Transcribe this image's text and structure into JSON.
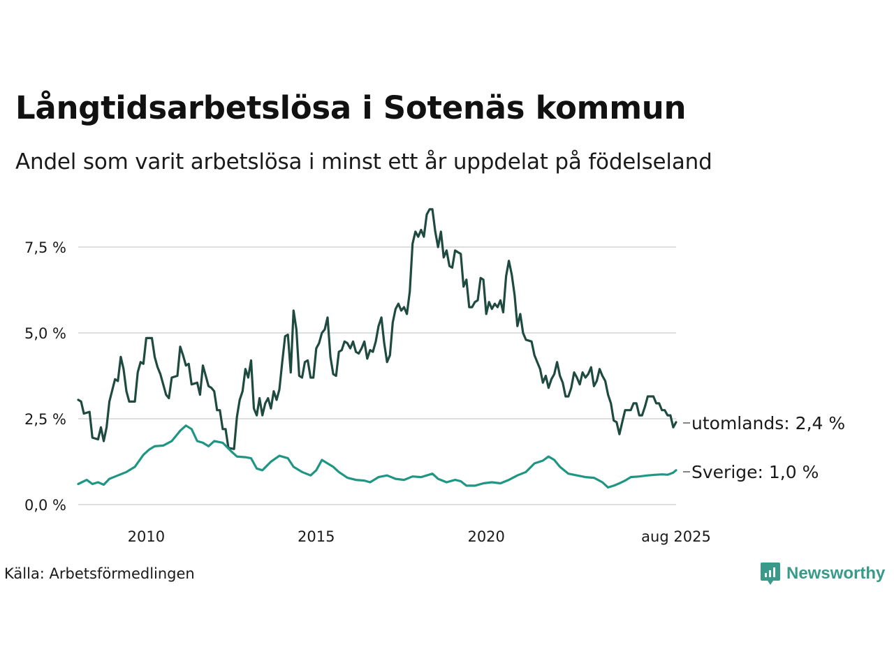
{
  "title": "Långtidsarbetslösa i Sotenäs kommun",
  "subtitle": "Andel som varit arbetslösa i minst ett år uppdelat på födelseland",
  "source": "Källa: Arbetsförmedlingen",
  "brand": {
    "name": "Newsworthy",
    "icon": "newsworthy-logo-icon",
    "color": "#3a9a8a"
  },
  "chart_data": {
    "type": "line",
    "title": "Långtidsarbetslösa i Sotenäs kommun",
    "subtitle": "Andel som varit arbetslösa i minst ett år uppdelat på födelseland",
    "x_start": "2008-01",
    "x_end": "2025-08",
    "frequency": "monthly",
    "x_ticks": [
      {
        "date": "2010-01",
        "label": "2010"
      },
      {
        "date": "2015-01",
        "label": "2015"
      },
      {
        "date": "2020-01",
        "label": "2020"
      },
      {
        "date": "2025-08",
        "label": "aug 2025"
      }
    ],
    "y_ticks": [
      {
        "value": 0,
        "label": "0,0 %"
      },
      {
        "value": 2.5,
        "label": "2,5 %"
      },
      {
        "value": 5,
        "label": "5,0 %"
      },
      {
        "value": 7.5,
        "label": "7,5 %"
      }
    ],
    "ylim": [
      0,
      8.7
    ],
    "grid": "horizontal",
    "series": [
      {
        "name": "utomlands",
        "end_label": "utomlands: 2,4 %",
        "color": "#1f4a40",
        "anchors": [
          [
            "2008-01",
            3.05
          ],
          [
            "2008-02",
            3.0
          ],
          [
            "2008-03",
            2.65
          ],
          [
            "2008-05",
            2.7
          ],
          [
            "2008-06",
            1.95
          ],
          [
            "2008-08",
            1.9
          ],
          [
            "2008-09",
            2.25
          ],
          [
            "2008-10",
            1.85
          ],
          [
            "2008-11",
            2.25
          ],
          [
            "2008-12",
            3.0
          ],
          [
            "2009-02",
            3.65
          ],
          [
            "2009-03",
            3.6
          ],
          [
            "2009-04",
            4.3
          ],
          [
            "2009-05",
            3.95
          ],
          [
            "2009-06",
            3.3
          ],
          [
            "2009-07",
            3.0
          ],
          [
            "2009-09",
            3.0
          ],
          [
            "2009-10",
            3.85
          ],
          [
            "2009-11",
            4.15
          ],
          [
            "2009-12",
            4.1
          ],
          [
            "2010-01",
            4.85
          ],
          [
            "2010-03",
            4.85
          ],
          [
            "2010-04",
            4.3
          ],
          [
            "2010-05",
            4.0
          ],
          [
            "2010-06",
            3.8
          ],
          [
            "2010-08",
            3.2
          ],
          [
            "2010-09",
            3.1
          ],
          [
            "2010-10",
            3.7
          ],
          [
            "2010-12",
            3.75
          ],
          [
            "2011-01",
            4.6
          ],
          [
            "2011-02",
            4.35
          ],
          [
            "2011-03",
            4.05
          ],
          [
            "2011-04",
            4.1
          ],
          [
            "2011-05",
            3.5
          ],
          [
            "2011-07",
            3.55
          ],
          [
            "2011-08",
            3.2
          ],
          [
            "2011-09",
            4.05
          ],
          [
            "2011-10",
            3.75
          ],
          [
            "2011-11",
            3.45
          ],
          [
            "2011-12",
            3.4
          ],
          [
            "2012-01",
            3.3
          ],
          [
            "2012-02",
            2.75
          ],
          [
            "2012-03",
            2.75
          ],
          [
            "2012-04",
            2.2
          ],
          [
            "2012-05",
            2.2
          ],
          [
            "2012-06",
            1.65
          ],
          [
            "2012-08",
            1.62
          ],
          [
            "2012-09",
            2.55
          ],
          [
            "2012-10",
            3.05
          ],
          [
            "2012-11",
            3.3
          ],
          [
            "2012-12",
            3.95
          ],
          [
            "2013-01",
            3.7
          ],
          [
            "2013-02",
            4.2
          ],
          [
            "2013-03",
            2.8
          ],
          [
            "2013-04",
            2.6
          ],
          [
            "2013-05",
            3.1
          ],
          [
            "2013-06",
            2.6
          ],
          [
            "2013-07",
            2.95
          ],
          [
            "2013-08",
            3.1
          ],
          [
            "2013-09",
            2.8
          ],
          [
            "2013-10",
            3.3
          ],
          [
            "2013-11",
            3.05
          ],
          [
            "2013-12",
            3.35
          ],
          [
            "2014-01",
            4.15
          ],
          [
            "2014-02",
            4.9
          ],
          [
            "2014-03",
            4.95
          ],
          [
            "2014-04",
            3.85
          ],
          [
            "2014-05",
            5.65
          ],
          [
            "2014-06",
            5.1
          ],
          [
            "2014-07",
            3.75
          ],
          [
            "2014-08",
            3.7
          ],
          [
            "2014-09",
            4.15
          ],
          [
            "2014-10",
            4.2
          ],
          [
            "2014-11",
            3.7
          ],
          [
            "2014-12",
            3.7
          ],
          [
            "2015-01",
            4.55
          ],
          [
            "2015-02",
            4.7
          ],
          [
            "2015-03",
            5.0
          ],
          [
            "2015-04",
            5.1
          ],
          [
            "2015-05",
            5.45
          ],
          [
            "2015-06",
            4.3
          ],
          [
            "2015-07",
            3.8
          ],
          [
            "2015-08",
            3.75
          ],
          [
            "2015-09",
            4.45
          ],
          [
            "2015-10",
            4.5
          ],
          [
            "2015-11",
            4.75
          ],
          [
            "2015-12",
            4.7
          ],
          [
            "2016-01",
            4.55
          ],
          [
            "2016-02",
            4.75
          ],
          [
            "2016-03",
            4.45
          ],
          [
            "2016-04",
            4.4
          ],
          [
            "2016-05",
            4.55
          ],
          [
            "2016-06",
            4.75
          ],
          [
            "2016-07",
            4.25
          ],
          [
            "2016-08",
            4.5
          ],
          [
            "2016-09",
            4.45
          ],
          [
            "2016-10",
            4.75
          ],
          [
            "2016-11",
            5.2
          ],
          [
            "2016-12",
            5.45
          ],
          [
            "2017-01",
            4.7
          ],
          [
            "2017-02",
            4.15
          ],
          [
            "2017-03",
            4.35
          ],
          [
            "2017-04",
            5.3
          ],
          [
            "2017-05",
            5.7
          ],
          [
            "2017-06",
            5.85
          ],
          [
            "2017-07",
            5.65
          ],
          [
            "2017-08",
            5.75
          ],
          [
            "2017-09",
            5.55
          ],
          [
            "2017-10",
            6.2
          ],
          [
            "2017-11",
            7.6
          ],
          [
            "2017-12",
            7.95
          ],
          [
            "2018-01",
            7.8
          ],
          [
            "2018-02",
            8.0
          ],
          [
            "2018-03",
            7.8
          ],
          [
            "2018-04",
            8.45
          ],
          [
            "2018-05",
            8.6
          ],
          [
            "2018-06",
            8.6
          ],
          [
            "2018-07",
            7.95
          ],
          [
            "2018-08",
            7.5
          ],
          [
            "2018-09",
            7.95
          ],
          [
            "2018-10",
            7.2
          ],
          [
            "2018-11",
            7.4
          ],
          [
            "2018-12",
            6.95
          ],
          [
            "2019-01",
            6.9
          ],
          [
            "2019-02",
            7.4
          ],
          [
            "2019-03",
            7.35
          ],
          [
            "2019-04",
            7.3
          ],
          [
            "2019-05",
            6.35
          ],
          [
            "2019-06",
            6.55
          ],
          [
            "2019-07",
            5.75
          ],
          [
            "2019-08",
            5.75
          ],
          [
            "2019-09",
            5.9
          ],
          [
            "2019-10",
            5.95
          ],
          [
            "2019-11",
            6.6
          ],
          [
            "2019-12",
            6.55
          ],
          [
            "2020-01",
            5.55
          ],
          [
            "2020-02",
            5.9
          ],
          [
            "2020-03",
            5.7
          ],
          [
            "2020-04",
            5.85
          ],
          [
            "2020-05",
            5.75
          ],
          [
            "2020-06",
            5.95
          ],
          [
            "2020-07",
            5.6
          ],
          [
            "2020-08",
            6.65
          ],
          [
            "2020-09",
            7.1
          ],
          [
            "2020-10",
            6.7
          ],
          [
            "2020-11",
            6.1
          ],
          [
            "2020-12",
            5.2
          ],
          [
            "2021-01",
            5.55
          ],
          [
            "2021-02",
            5.0
          ],
          [
            "2021-03",
            4.8
          ],
          [
            "2021-05",
            4.75
          ],
          [
            "2021-06",
            4.35
          ],
          [
            "2021-07",
            4.15
          ],
          [
            "2021-08",
            3.95
          ],
          [
            "2021-09",
            3.55
          ],
          [
            "2021-10",
            3.75
          ],
          [
            "2021-11",
            3.4
          ],
          [
            "2021-12",
            3.65
          ],
          [
            "2022-01",
            3.8
          ],
          [
            "2022-02",
            4.15
          ],
          [
            "2022-03",
            3.75
          ],
          [
            "2022-04",
            3.55
          ],
          [
            "2022-05",
            3.15
          ],
          [
            "2022-06",
            3.15
          ],
          [
            "2022-07",
            3.4
          ],
          [
            "2022-08",
            3.85
          ],
          [
            "2022-09",
            3.7
          ],
          [
            "2022-10",
            3.5
          ],
          [
            "2022-11",
            3.85
          ],
          [
            "2022-12",
            3.7
          ],
          [
            "2023-01",
            3.8
          ],
          [
            "2023-02",
            4.0
          ],
          [
            "2023-03",
            3.45
          ],
          [
            "2023-04",
            3.6
          ],
          [
            "2023-05",
            3.95
          ],
          [
            "2023-06",
            3.75
          ],
          [
            "2023-07",
            3.6
          ],
          [
            "2023-08",
            3.2
          ],
          [
            "2023-09",
            2.95
          ],
          [
            "2023-10",
            2.45
          ],
          [
            "2023-11",
            2.4
          ],
          [
            "2023-12",
            2.05
          ],
          [
            "2024-01",
            2.4
          ],
          [
            "2024-02",
            2.75
          ],
          [
            "2024-04",
            2.75
          ],
          [
            "2024-05",
            2.95
          ],
          [
            "2024-06",
            2.95
          ],
          [
            "2024-07",
            2.6
          ],
          [
            "2024-08",
            2.6
          ],
          [
            "2024-09",
            2.85
          ],
          [
            "2024-10",
            3.15
          ],
          [
            "2024-12",
            3.15
          ],
          [
            "2025-01",
            2.95
          ],
          [
            "2025-02",
            2.95
          ],
          [
            "2025-03",
            2.75
          ],
          [
            "2025-04",
            2.75
          ],
          [
            "2025-05",
            2.6
          ],
          [
            "2025-06",
            2.6
          ],
          [
            "2025-07",
            2.25
          ],
          [
            "2025-08",
            2.4
          ]
        ]
      },
      {
        "name": "Sverige",
        "end_label": "Sverige: 1,0 %",
        "color": "#1f9683",
        "anchors": [
          [
            "2008-01",
            0.6
          ],
          [
            "2008-04",
            0.72
          ],
          [
            "2008-06",
            0.6
          ],
          [
            "2008-08",
            0.65
          ],
          [
            "2008-10",
            0.58
          ],
          [
            "2008-12",
            0.75
          ],
          [
            "2009-03",
            0.85
          ],
          [
            "2009-06",
            0.95
          ],
          [
            "2009-09",
            1.1
          ],
          [
            "2009-12",
            1.45
          ],
          [
            "2010-02",
            1.6
          ],
          [
            "2010-04",
            1.7
          ],
          [
            "2010-07",
            1.72
          ],
          [
            "2010-10",
            1.85
          ],
          [
            "2011-01",
            2.15
          ],
          [
            "2011-03",
            2.3
          ],
          [
            "2011-05",
            2.2
          ],
          [
            "2011-07",
            1.85
          ],
          [
            "2011-09",
            1.8
          ],
          [
            "2011-11",
            1.7
          ],
          [
            "2012-01",
            1.85
          ],
          [
            "2012-04",
            1.8
          ],
          [
            "2012-07",
            1.55
          ],
          [
            "2012-09",
            1.4
          ],
          [
            "2012-12",
            1.38
          ],
          [
            "2013-02",
            1.35
          ],
          [
            "2013-04",
            1.05
          ],
          [
            "2013-06",
            1.0
          ],
          [
            "2013-09",
            1.25
          ],
          [
            "2013-12",
            1.42
          ],
          [
            "2014-03",
            1.35
          ],
          [
            "2014-05",
            1.1
          ],
          [
            "2014-08",
            0.95
          ],
          [
            "2014-11",
            0.85
          ],
          [
            "2015-01",
            1.0
          ],
          [
            "2015-03",
            1.3
          ],
          [
            "2015-05",
            1.2
          ],
          [
            "2015-07",
            1.1
          ],
          [
            "2015-09",
            0.95
          ],
          [
            "2015-12",
            0.78
          ],
          [
            "2016-03",
            0.72
          ],
          [
            "2016-06",
            0.7
          ],
          [
            "2016-08",
            0.65
          ],
          [
            "2016-11",
            0.8
          ],
          [
            "2017-02",
            0.85
          ],
          [
            "2017-05",
            0.75
          ],
          [
            "2017-08",
            0.72
          ],
          [
            "2017-11",
            0.82
          ],
          [
            "2018-02",
            0.8
          ],
          [
            "2018-04",
            0.85
          ],
          [
            "2018-06",
            0.9
          ],
          [
            "2018-08",
            0.75
          ],
          [
            "2018-11",
            0.65
          ],
          [
            "2019-02",
            0.72
          ],
          [
            "2019-04",
            0.68
          ],
          [
            "2019-06",
            0.55
          ],
          [
            "2019-09",
            0.55
          ],
          [
            "2019-12",
            0.62
          ],
          [
            "2020-03",
            0.65
          ],
          [
            "2020-06",
            0.62
          ],
          [
            "2020-09",
            0.72
          ],
          [
            "2020-12",
            0.85
          ],
          [
            "2021-03",
            0.95
          ],
          [
            "2021-06",
            1.2
          ],
          [
            "2021-09",
            1.28
          ],
          [
            "2021-11",
            1.4
          ],
          [
            "2022-01",
            1.3
          ],
          [
            "2022-03",
            1.1
          ],
          [
            "2022-06",
            0.9
          ],
          [
            "2022-09",
            0.85
          ],
          [
            "2022-12",
            0.8
          ],
          [
            "2023-03",
            0.78
          ],
          [
            "2023-06",
            0.65
          ],
          [
            "2023-08",
            0.5
          ],
          [
            "2023-10",
            0.55
          ],
          [
            "2023-12",
            0.62
          ],
          [
            "2024-02",
            0.7
          ],
          [
            "2024-04",
            0.8
          ],
          [
            "2024-07",
            0.82
          ],
          [
            "2024-10",
            0.85
          ],
          [
            "2025-01",
            0.87
          ],
          [
            "2025-03",
            0.88
          ],
          [
            "2025-05",
            0.87
          ],
          [
            "2025-07",
            0.93
          ],
          [
            "2025-08",
            1.0
          ]
        ]
      }
    ]
  }
}
